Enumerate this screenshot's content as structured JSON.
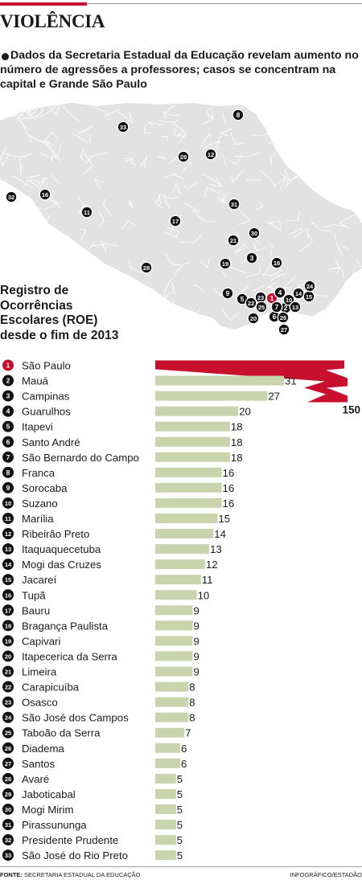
{
  "section_title": "VIOLÊNCIA",
  "subtitle": "Dados da Secretaria Estadual da Educação revelam aumento no número de agressões a professores; casos se concentram na capital e Grande São Paulo",
  "footer": {
    "source_label": "FONTE:",
    "source_text": "SECRETARIA ESTADUAL DA EDUCAÇÃO",
    "credit": "INFOGRÁFICO/ESTADÃO"
  },
  "colors": {
    "bar": "#c9d3ac",
    "highlight": "#c8102e",
    "marker": "#111111",
    "map_land": "#e2e2e2",
    "map_lines": "#ffffff",
    "accent": "#c8102e"
  },
  "map_markers": [
    "1",
    "2",
    "3",
    "4",
    "5",
    "6",
    "7",
    "8",
    "9",
    "10",
    "11",
    "12",
    "13",
    "14",
    "15",
    "16",
    "17",
    "18",
    "19",
    "20",
    "21",
    "22",
    "23",
    "24",
    "25",
    "26",
    "27",
    "28",
    "29",
    "30",
    "31",
    "32",
    "33"
  ],
  "chart_data": {
    "type": "bar",
    "orientation": "horizontal",
    "title": "Registro de Ocorrências Escolares (ROE) desde o fim de 2013",
    "ranks": [
      "1",
      "2",
      "3",
      "4",
      "5",
      "6",
      "7",
      "8",
      "9",
      "10",
      "11",
      "12",
      "13",
      "14",
      "15",
      "16",
      "17",
      "18",
      "19",
      "20",
      "21",
      "22",
      "23",
      "24",
      "25",
      "26",
      "27",
      "28",
      "29",
      "30",
      "31",
      "32",
      "33"
    ],
    "categories": [
      "São Paulo",
      "Mauá",
      "Campinas",
      "Guarulhos",
      "Itapevi",
      "Santo André",
      "São Bernardo do Campo",
      "Franca",
      "Sorocaba",
      "Suzano",
      "Marília",
      "Ribeirão Preto",
      "Itaquaquecetuba",
      "Mogi das Cruzes",
      "Jacareí",
      "Tupã",
      "Bauru",
      "Bragança Paulista",
      "Capivari",
      "Itapecerica da Serra",
      "Limeira",
      "Carapicuíba",
      "Osasco",
      "São José dos Campos",
      "Taboão da Serra",
      "Diadema",
      "Santos",
      "Avaré",
      "Jaboticabal",
      "Mogi Mirim",
      "Pirassununga",
      "Presidente Prudente",
      "São José do Rio Preto"
    ],
    "values": [
      150,
      31,
      27,
      20,
      18,
      18,
      18,
      16,
      16,
      16,
      15,
      14,
      13,
      12,
      11,
      10,
      9,
      9,
      9,
      9,
      9,
      8,
      8,
      8,
      7,
      6,
      6,
      5,
      5,
      5,
      5,
      5,
      5
    ],
    "value_labels": [
      "150",
      "31",
      "27",
      "20",
      "18",
      "18",
      "18",
      "16",
      "16",
      "16",
      "15",
      "14",
      "13",
      "12",
      "11",
      "10",
      "9",
      "9",
      "9",
      "9",
      "9",
      "8",
      "8",
      "8",
      "7",
      "6",
      "6",
      "5",
      "5",
      "5",
      "5",
      "5",
      "5"
    ],
    "highlight_index": 0,
    "xlabel": "",
    "ylabel": ""
  }
}
